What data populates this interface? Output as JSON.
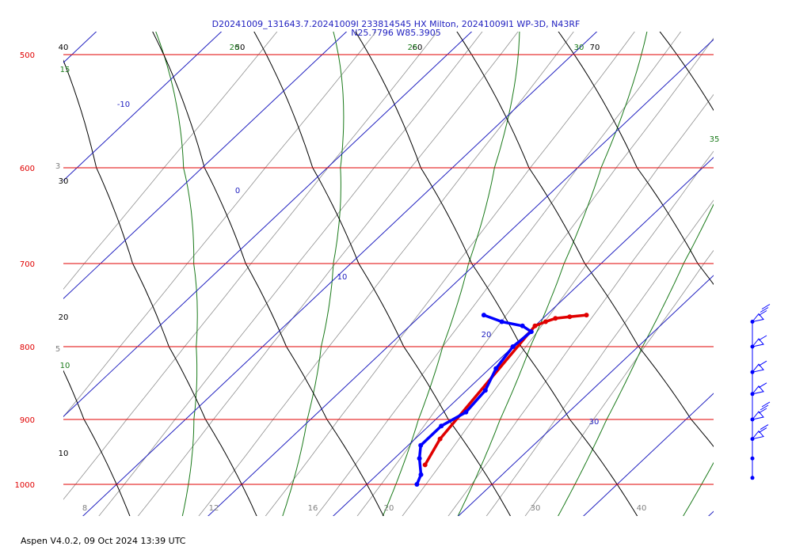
{
  "title_line1": "D20241009_131643.7.20241009I 233814545 HX Milton, 20241009I1 WP-3D, N43RF",
  "title_line2": "N25.7796 W85.3905",
  "footer": "Aspen V4.0.2, 09 Oct 2024  13:39 UTC",
  "colors": {
    "isobar": "#e00000",
    "isotherm": "#2020c0",
    "dry_adiabat": "#000000",
    "moist_adiabat": "#1a7a1a",
    "mixing_ratio": "#909090",
    "temperature": "#e00000",
    "dewpoint": "#0000ff",
    "wind": "#0000ff"
  },
  "chart_data": {
    "type": "line",
    "title": "D20241009_131643.7.20241009I 233814545 HX Milton, 20241009I1 WP-3D, N43RF",
    "subtitle": "N25.7796 W85.3905",
    "pressure_levels": [
      500,
      600,
      700,
      800,
      900,
      1000
    ],
    "pressure_labels": [
      "500",
      "600",
      "700",
      "800",
      "900",
      "1000"
    ],
    "isotherm_labels": [
      {
        "text": "-10",
        "temp": -10
      },
      {
        "text": "0",
        "temp": 0
      },
      {
        "text": "10",
        "temp": 10
      },
      {
        "text": "20",
        "temp": 20
      },
      {
        "text": "30",
        "temp": 30
      }
    ],
    "bottom_labels": [
      "8",
      "12",
      "16",
      "20",
      "30",
      "40"
    ],
    "dry_adiabat_labels": [
      "10",
      "20",
      "30",
      "40",
      "50",
      "60",
      "70"
    ],
    "moist_adiabat_labels": [
      "10",
      "15",
      "20",
      "25",
      "30",
      "35"
    ],
    "mixing_ratio_labels": [
      "3",
      "5"
    ],
    "series": [
      {
        "name": "",
        "variable": "temperature",
        "points": [
          {
            "p": 762,
            "t": 23.2
          },
          {
            "p": 764,
            "t": 22.0
          },
          {
            "p": 766,
            "t": 21.0
          },
          {
            "p": 770,
            "t": 20.5
          },
          {
            "p": 775,
            "t": 20.0
          },
          {
            "p": 930,
            "t": 22.0
          },
          {
            "p": 970,
            "t": 23.0
          }
        ]
      },
      {
        "name": "",
        "variable": "dewpoint",
        "points": [
          {
            "p": 762,
            "t": 15.0
          },
          {
            "p": 770,
            "t": 17.0
          },
          {
            "p": 775,
            "t": 19.0
          },
          {
            "p": 782,
            "t": 20.2
          },
          {
            "p": 800,
            "t": 20.0
          },
          {
            "p": 830,
            "t": 20.5
          },
          {
            "p": 860,
            "t": 21.5
          },
          {
            "p": 890,
            "t": 21.8
          },
          {
            "p": 910,
            "t": 21.0
          },
          {
            "p": 940,
            "t": 21.0
          },
          {
            "p": 960,
            "t": 22.0
          },
          {
            "p": 985,
            "t": 23.5
          },
          {
            "p": 1000,
            "t": 24.0
          }
        ]
      }
    ],
    "wind_levels": [
      {
        "p": 770,
        "barbs": "flag+3"
      },
      {
        "p": 800,
        "barbs": "flag+1"
      },
      {
        "p": 835,
        "barbs": "flag+1"
      },
      {
        "p": 865,
        "barbs": "flag+1"
      },
      {
        "p": 900,
        "barbs": "flag+3"
      },
      {
        "p": 930,
        "barbs": "flag+2"
      },
      {
        "p": 960,
        "barbs": "calm"
      },
      {
        "p": 990,
        "barbs": "calm"
      }
    ]
  }
}
